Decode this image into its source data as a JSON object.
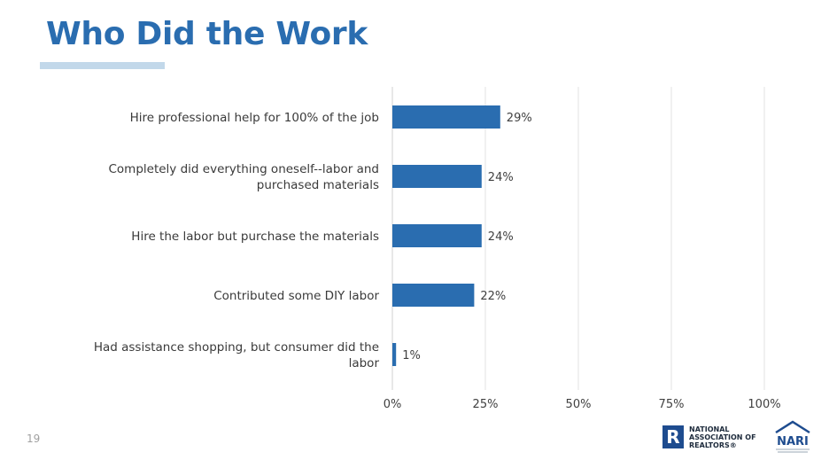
{
  "slide": {
    "title": "Who Did the Work",
    "page_number": "19"
  },
  "logos": {
    "nar": {
      "text": "NATIONAL\nASSOCIATION OF\nREALTORS®",
      "color": "#1e4c8f"
    },
    "nari": {
      "text": "NARI",
      "color": "#1e4c8f"
    }
  },
  "chart_data": {
    "type": "bar",
    "orientation": "horizontal",
    "categories": [
      "Hire professional help for 100% of the job",
      "Completely did everything oneself--labor and purchased materials",
      "Hire the labor but purchase the materials",
      "Contributed some DIY labor",
      "Had assistance shopping, but consumer did the labor"
    ],
    "category_lines": [
      [
        "Hire professional help for 100% of the job"
      ],
      [
        "Completely did everything oneself--labor and",
        "purchased materials"
      ],
      [
        "Hire the labor but purchase the materials"
      ],
      [
        "Contributed some DIY labor"
      ],
      [
        "Had assistance shopping, but consumer did the",
        "labor"
      ]
    ],
    "values": [
      29,
      24,
      24,
      22,
      1
    ],
    "value_labels": [
      "29%",
      "24%",
      "24%",
      "22%",
      "1%"
    ],
    "xlim": [
      0,
      100
    ],
    "xticks": [
      0,
      25,
      50,
      75,
      100
    ],
    "xtick_labels": [
      "0%",
      "25%",
      "50%",
      "75%",
      "100%"
    ],
    "grid": true,
    "bar_color": "#2a6db0"
  }
}
